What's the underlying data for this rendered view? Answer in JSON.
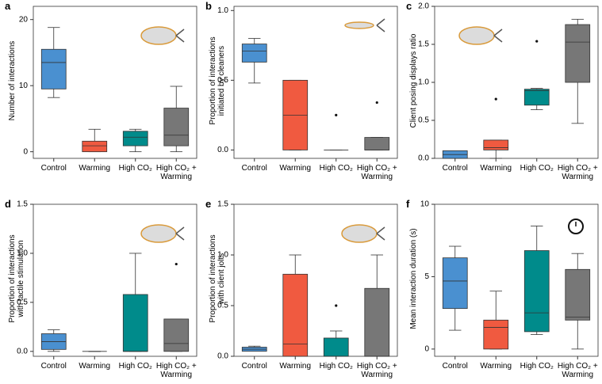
{
  "chart_data": [
    {
      "type": "box",
      "title": "a",
      "ylabel": "Number of interactions",
      "categories": [
        "Control",
        "Warming",
        "High CO₂",
        "High CO₂ + Warming"
      ],
      "colors": [
        "#4a90d0",
        "#f05a40",
        "#008b8b",
        "#777777"
      ],
      "boxes": [
        {
          "min": 8.2,
          "q1": 9.5,
          "median": 13.5,
          "q3": 15.5,
          "max": 18.8,
          "outliers": []
        },
        {
          "min": 0,
          "q1": 0,
          "median": 0.9,
          "q3": 1.6,
          "max": 3.4,
          "outliers": []
        },
        {
          "min": 0,
          "q1": 0.9,
          "median": 2.2,
          "q3": 3.1,
          "max": 3.4,
          "outliers": []
        },
        {
          "min": 0,
          "q1": 0.9,
          "median": 2.5,
          "q3": 6.6,
          "max": 9.9,
          "outliers": []
        }
      ],
      "ylim": [
        -1,
        22
      ],
      "yticks": [
        0,
        10,
        20
      ]
    },
    {
      "type": "box",
      "title": "b",
      "ylabel": "Proportion of interactions\ninitiated by cleaners",
      "categories": [
        "Control",
        "Warming",
        "High CO₂",
        "High CO₂ + Warming"
      ],
      "colors": [
        "#4a90d0",
        "#f05a40",
        "#008b8b",
        "#777777"
      ],
      "boxes": [
        {
          "min": 0.48,
          "q1": 0.63,
          "median": 0.71,
          "q3": 0.76,
          "max": 0.8,
          "outliers": []
        },
        {
          "min": 0,
          "q1": 0,
          "median": 0.25,
          "q3": 0.5,
          "max": 0.5,
          "outliers": []
        },
        {
          "min": 0,
          "q1": 0,
          "median": 0,
          "q3": 0,
          "max": 0,
          "outliers": [
            0.25
          ]
        },
        {
          "min": 0,
          "q1": 0,
          "median": 0,
          "q3": 0.09,
          "max": 0.09,
          "outliers": [
            0.34
          ]
        }
      ],
      "ylim": [
        -0.06,
        1.03
      ],
      "yticks": [
        {
          "value": 0,
          "label": "0.0"
        },
        {
          "value": 0.5,
          "label": "0.5"
        },
        {
          "value": 1,
          "label": "1.0"
        }
      ]
    },
    {
      "type": "box",
      "title": "c",
      "ylabel": "Client posing displays ratio",
      "categories": [
        "Control",
        "Warming",
        "High CO₂",
        "High CO₂ + Warming"
      ],
      "colors": [
        "#4a90d0",
        "#f05a40",
        "#008b8b",
        "#777777"
      ],
      "boxes": [
        {
          "min": 0,
          "q1": 0,
          "median": 0.05,
          "q3": 0.1,
          "max": 0.1,
          "outliers": []
        },
        {
          "min": 0,
          "q1": 0.11,
          "median": 0.14,
          "q3": 0.24,
          "max": 0.24,
          "outliers": [
            0.78
          ]
        },
        {
          "min": 0.64,
          "q1": 0.7,
          "median": 0.89,
          "q3": 0.91,
          "max": 0.92,
          "outliers": [
            1.54
          ]
        },
        {
          "min": 0.46,
          "q1": 1.0,
          "median": 1.53,
          "q3": 1.76,
          "max": 1.83,
          "outliers": []
        }
      ],
      "ylim": [
        0,
        2
      ],
      "yticks": [
        {
          "value": 0,
          "label": "0.0"
        },
        {
          "value": 0.5,
          "label": "0.5"
        },
        {
          "value": 1,
          "label": "1.0"
        },
        {
          "value": 1.5,
          "label": "1.5"
        },
        {
          "value": 2,
          "label": "2.0"
        }
      ]
    },
    {
      "type": "box",
      "title": "d",
      "ylabel": "Proportion of interactions\nwith tactile stimulation",
      "categories": [
        "Control",
        "Warming",
        "High CO₂",
        "High CO₂ + Warming"
      ],
      "colors": [
        "#4a90d0",
        "#f05a40",
        "#008b8b",
        "#777777"
      ],
      "boxes": [
        {
          "min": 0,
          "q1": 0.02,
          "median": 0.1,
          "q3": 0.18,
          "max": 0.22,
          "outliers": []
        },
        {
          "min": 0,
          "q1": 0,
          "median": 0,
          "q3": 0,
          "max": 0,
          "outliers": []
        },
        {
          "min": 0,
          "q1": 0,
          "median": 0,
          "q3": 0.58,
          "max": 1.0,
          "outliers": []
        },
        {
          "min": 0,
          "q1": 0,
          "median": 0.08,
          "q3": 0.33,
          "max": 0.33,
          "outliers": [
            0.89
          ]
        }
      ],
      "ylim": [
        -0.05,
        1.5
      ],
      "yticks": [
        {
          "value": 0,
          "label": "0.0"
        },
        {
          "value": 0.5,
          "label": "0.5"
        },
        {
          "value": 1,
          "label": "1.0"
        },
        {
          "value": 1.5,
          "label": "1.5"
        }
      ]
    },
    {
      "type": "box",
      "title": "e",
      "ylabel": "Proportion of interactions\nwith client jolts",
      "categories": [
        "Control",
        "Warming",
        "High CO₂",
        "High CO₂ + Warming"
      ],
      "colors": [
        "#4a90d0",
        "#f05a40",
        "#008b8b",
        "#777777"
      ],
      "boxes": [
        {
          "min": 0.05,
          "q1": 0.05,
          "median": 0.07,
          "q3": 0.09,
          "max": 0.1,
          "outliers": []
        },
        {
          "min": 0,
          "q1": 0,
          "median": 0.12,
          "q3": 0.81,
          "max": 1.0,
          "outliers": []
        },
        {
          "min": 0,
          "q1": 0,
          "median": 0,
          "q3": 0.18,
          "max": 0.25,
          "outliers": [
            0.5
          ]
        },
        {
          "min": 0,
          "q1": 0,
          "median": 0,
          "q3": 0.67,
          "max": 1.0,
          "outliers": []
        }
      ],
      "ylim": [
        0,
        1.5
      ],
      "yticks": [
        {
          "value": 0,
          "label": "0.0"
        },
        {
          "value": 0.5,
          "label": "0.5"
        },
        {
          "value": 1,
          "label": "1.0"
        },
        {
          "value": 1.5,
          "label": "1.5"
        }
      ]
    },
    {
      "type": "box",
      "title": "f",
      "ylabel": "Mean interaction duration (s)",
      "categories": [
        "Control",
        "Warming",
        "High CO₂",
        "High CO₂ + Warming"
      ],
      "colors": [
        "#4a90d0",
        "#f05a40",
        "#008b8b",
        "#777777"
      ],
      "boxes": [
        {
          "min": 1.3,
          "q1": 2.8,
          "median": 4.7,
          "q3": 6.3,
          "max": 7.1,
          "outliers": []
        },
        {
          "min": 0,
          "q1": 0,
          "median": 1.5,
          "q3": 2.0,
          "max": 4.0,
          "outliers": []
        },
        {
          "min": 1.0,
          "q1": 1.2,
          "median": 2.5,
          "q3": 6.8,
          "max": 8.5,
          "outliers": []
        },
        {
          "min": 0,
          "q1": 2.0,
          "median": 2.2,
          "q3": 5.5,
          "max": 6.6,
          "outliers": []
        }
      ],
      "ylim": [
        -0.5,
        10
      ],
      "yticks": [
        0,
        5,
        10
      ]
    }
  ]
}
